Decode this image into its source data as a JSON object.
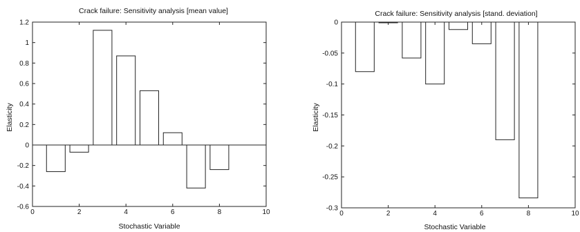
{
  "chart_data": [
    {
      "type": "bar",
      "title": "Crack failure: Sensitivity analysis  [mean value]",
      "xlabel": "Stochastic Variable",
      "ylabel": "Elasticity",
      "x": [
        1,
        2,
        3,
        4,
        5,
        6,
        7,
        8
      ],
      "values": [
        -0.26,
        -0.07,
        1.12,
        0.87,
        0.53,
        0.12,
        -0.42,
        -0.24
      ],
      "xlim": [
        0,
        10
      ],
      "ylim": [
        -0.6,
        1.2
      ],
      "xticks": [
        0,
        2,
        4,
        6,
        8,
        10
      ],
      "yticks": [
        -0.6,
        -0.4,
        -0.2,
        0,
        0.2,
        0.4,
        0.6,
        0.8,
        1,
        1.2
      ],
      "ytick_labels": [
        "-0.6",
        "-0.4",
        "-0.2",
        "0",
        "0.2",
        "0.4",
        "0.6",
        "0.8",
        "1",
        "1.2"
      ],
      "grid": false
    },
    {
      "type": "bar",
      "title": "Crack failure: Sensitivity analysis [stand. deviation]",
      "xlabel": "Stochastic Variable",
      "ylabel": "Elasticity",
      "x": [
        1,
        2,
        3,
        4,
        5,
        6,
        7,
        8
      ],
      "values": [
        -0.08,
        -0.001,
        -0.058,
        -0.1,
        -0.012,
        -0.035,
        -0.19,
        -0.284
      ],
      "xlim": [
        0,
        10
      ],
      "ylim": [
        -0.3,
        0
      ],
      "xticks": [
        0,
        2,
        4,
        6,
        8,
        10
      ],
      "yticks": [
        -0.3,
        -0.25,
        -0.2,
        -0.15,
        -0.1,
        -0.05,
        0
      ],
      "ytick_labels": [
        "-0.3",
        "-0.25",
        "-0.2",
        "-0.15",
        "-0.1",
        "-0.05",
        "0"
      ],
      "grid": false
    }
  ]
}
